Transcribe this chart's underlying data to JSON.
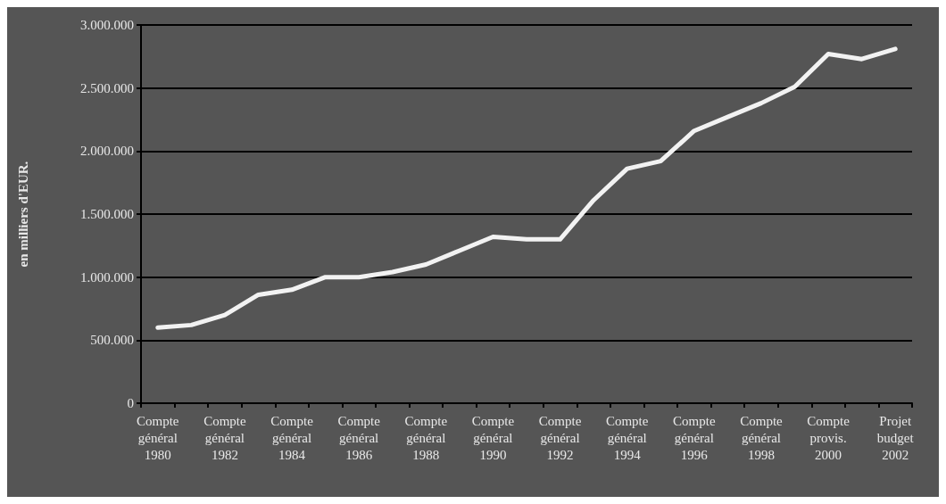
{
  "chart_data": {
    "type": "line",
    "ylabel": "en milliers d'EUR.",
    "categories": [
      "Compte\ngénéral\n1980",
      null,
      "Compte\ngénéral\n1982",
      null,
      "Compte\ngénéral\n1984",
      null,
      "Compte\ngénéral\n1986",
      null,
      "Compte\ngénéral\n1988",
      null,
      "Compte\ngénéral\n1990",
      null,
      "Compte\ngénéral\n1992",
      null,
      "Compte\ngénéral\n1994",
      null,
      "Compte\ngénéral\n1996",
      null,
      "Compte\ngénéral\n1998",
      null,
      "Compte\nprovis.\n2000",
      null,
      "Projet\nbudget\n2002"
    ],
    "series": [
      {
        "color": "#f2f2f2",
        "values": [
          600000,
          620000,
          700000,
          860000,
          900000,
          1000000,
          1000000,
          1040000,
          1100000,
          1210000,
          1320000,
          1300000,
          1300000,
          1610000,
          1860000,
          1920000,
          2160000,
          2270000,
          2380000,
          2510000,
          2770000,
          2730000,
          2810000
        ]
      }
    ],
    "ylim": [
      0,
      3000000
    ],
    "yticks": [
      0,
      {
        "value": 500000,
        "label": "500.000"
      },
      {
        "value": 1000000,
        "label": "1.000.000"
      },
      {
        "value": 1500000,
        "label": "1.500.000"
      },
      {
        "value": 2000000,
        "label": "2.000.000"
      },
      {
        "value": 2500000,
        "label": "2.500.000"
      },
      {
        "value": 3000000,
        "label": "3.000.000"
      }
    ],
    "grid": "y",
    "marker": "none",
    "line_style": "solid"
  }
}
